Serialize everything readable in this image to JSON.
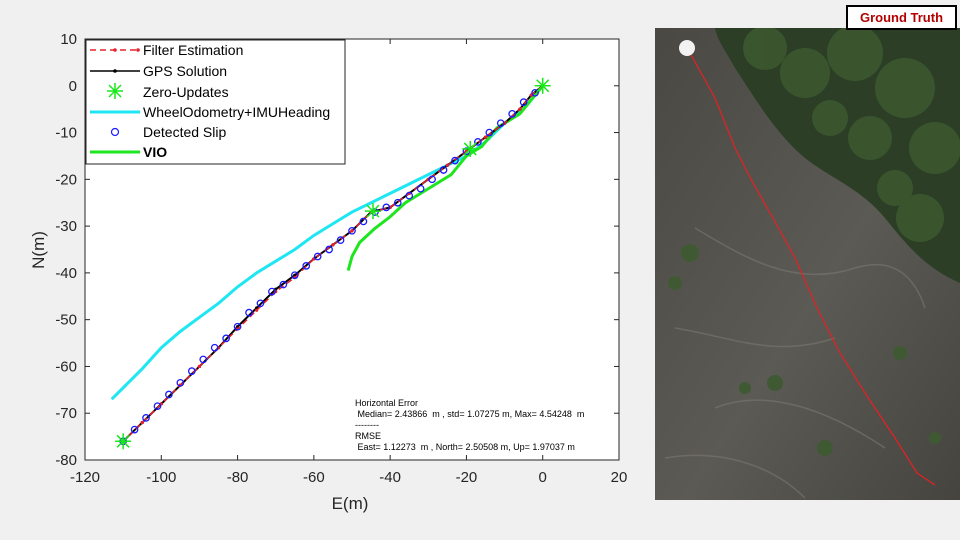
{
  "chart_data": {
    "type": "line",
    "xlabel": "E(m)",
    "ylabel": "N(m)",
    "xlim": [
      -120,
      20
    ],
    "ylim": [
      -80,
      10
    ],
    "xticks": [
      -120,
      -100,
      -80,
      -60,
      -40,
      -20,
      0,
      20
    ],
    "yticks": [
      10,
      0,
      -10,
      -20,
      -30,
      -40,
      -50,
      -60,
      -70,
      -80
    ],
    "grid": false,
    "legend_position": "top-left",
    "series": [
      {
        "name": "Filter Estimation",
        "color": "#e8212b",
        "style": "dashed-with-dots",
        "x": [
          0,
          -3,
          -6,
          -10,
          -15,
          -20,
          -25,
          -30,
          -35,
          -40,
          -45,
          -50,
          -55,
          -60,
          -65,
          -70,
          -75,
          -80,
          -85,
          -90,
          -95,
          -100,
          -105,
          -110
        ],
        "y": [
          0,
          -2,
          -5,
          -8,
          -11,
          -14,
          -17,
          -20,
          -23,
          -26,
          -27,
          -31,
          -34,
          -37,
          -41,
          -44,
          -48,
          -52,
          -56,
          -60,
          -64,
          -68,
          -72,
          -76
        ]
      },
      {
        "name": "GPS Solution",
        "color": "#000000",
        "style": "solid-with-dots",
        "x": [
          0,
          -3,
          -6,
          -10,
          -15,
          -20,
          -25,
          -30,
          -35,
          -40,
          -45,
          -50,
          -55,
          -60,
          -65,
          -70,
          -75,
          -80,
          -85,
          -90,
          -95,
          -100,
          -105,
          -110
        ],
        "y": [
          0,
          -2,
          -5,
          -8,
          -11,
          -14,
          -17,
          -20,
          -23,
          -26,
          -27,
          -31,
          -34,
          -37,
          -40.5,
          -43.5,
          -47.5,
          -51.5,
          -56,
          -60,
          -64,
          -68,
          -72,
          -76
        ]
      },
      {
        "name": "Zero-Updates",
        "color": "#17e817",
        "style": "star-markers",
        "x": [
          0,
          -19,
          -44.5,
          -110
        ],
        "y": [
          0,
          -13.5,
          -26.8,
          -76
        ]
      },
      {
        "name": "WheelOdometry+IMUHeading",
        "color": "#1ee6f2",
        "style": "solid",
        "x": [
          0,
          -5,
          -10,
          -15,
          -20,
          -25,
          -30,
          -35,
          -40,
          -45,
          -50,
          -55,
          -60,
          -65,
          -70,
          -75,
          -80,
          -85,
          -90,
          -95,
          -100,
          -105,
          -113
        ],
        "y": [
          0,
          -5,
          -8,
          -12,
          -15,
          -17,
          -19,
          -21,
          -23,
          -25,
          -27,
          -29.5,
          -32,
          -35,
          -37.5,
          -40,
          -43,
          -46.5,
          -49.5,
          -52.5,
          -56,
          -60.5,
          -67
        ]
      },
      {
        "name": "Detected Slip",
        "color": "#1a1aff",
        "style": "circle-markers",
        "x": [
          -2,
          -5,
          -8,
          -11,
          -14,
          -17,
          -20,
          -23,
          -26,
          -29,
          -32,
          -35,
          -38,
          -41,
          -44,
          -47,
          -50,
          -53,
          -56,
          -59,
          -62,
          -65,
          -68,
          -71,
          -74,
          -77,
          -80,
          -83,
          -86,
          -89,
          -92,
          -95,
          -98,
          -101,
          -104,
          -107,
          -110
        ],
        "y": [
          -1.5,
          -3.5,
          -6,
          -8,
          -10,
          -12,
          -14,
          -16,
          -18,
          -20,
          -22,
          -23.5,
          -25,
          -26,
          -27,
          -29,
          -31,
          -33,
          -35,
          -36.5,
          -38.5,
          -40.5,
          -42.5,
          -44,
          -46.5,
          -48.5,
          -51.5,
          -54,
          -56,
          -58.5,
          -61,
          -63.5,
          -66,
          -68.5,
          -71,
          -73.5,
          -76
        ]
      },
      {
        "name": "VIO",
        "color": "#1ee61e",
        "style": "solid-thick",
        "x": [
          0,
          -3,
          -6,
          -10,
          -12,
          -14,
          -16,
          -18,
          -20,
          -24,
          -28,
          -32,
          -36,
          -40,
          -44,
          -48,
          -50,
          -51
        ],
        "y": [
          0,
          -3,
          -6,
          -8,
          -9,
          -11,
          -13,
          -14,
          -15,
          -19,
          -21,
          -23,
          -25,
          -28,
          -30.5,
          -33.5,
          -36.5,
          -39.5
        ]
      }
    ],
    "annotation": {
      "line1": "Horizontal Error",
      "line2": " Median= 2.43866  m , std= 1.07275 m, Max= 4.54248  m",
      "line3": "--------",
      "line4": "RMSE",
      "line5": " East= 1.12273  m , North= 2.50508 m, Up= 1.97037 m"
    }
  },
  "ground_truth_label": "Ground Truth",
  "colors": {
    "ground_truth_text": "#b30000",
    "figure_background": "#f0f0f0",
    "aerial_trajectory": "#e82020"
  }
}
